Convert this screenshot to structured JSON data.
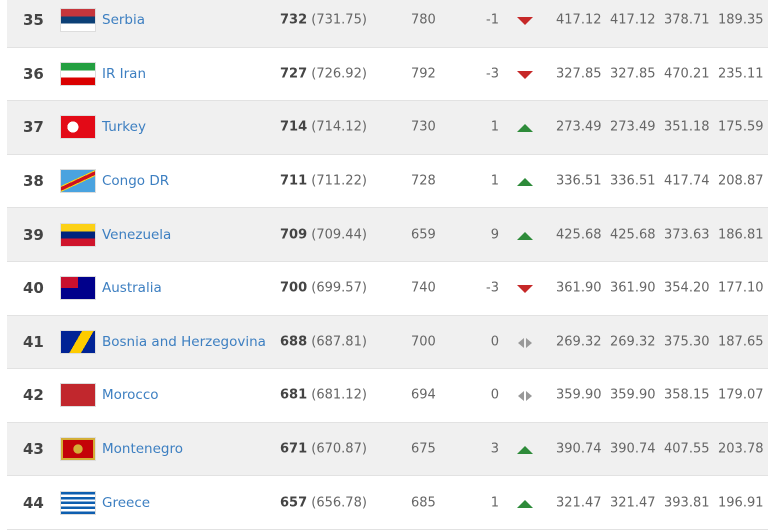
{
  "colors": {
    "up": "#2e8b3a",
    "down": "#c62828",
    "same": "#999999",
    "link": "#3d7fc1"
  },
  "rows": [
    {
      "rank": "35",
      "country": "Serbia",
      "flag": "serbia-flag",
      "points": "732",
      "points_exact": "(731.75)",
      "prev": "780",
      "change": "-1",
      "trend": "down",
      "c1": "417.12",
      "c2": "417.12",
      "c3": "378.71",
      "c4": "189.35"
    },
    {
      "rank": "36",
      "country": "IR Iran",
      "flag": "iran-flag",
      "points": "727",
      "points_exact": "(726.92)",
      "prev": "792",
      "change": "-3",
      "trend": "down",
      "c1": "327.85",
      "c2": "327.85",
      "c3": "470.21",
      "c4": "235.11"
    },
    {
      "rank": "37",
      "country": "Turkey",
      "flag": "turkey-flag",
      "points": "714",
      "points_exact": "(714.12)",
      "prev": "730",
      "change": "1",
      "trend": "up",
      "c1": "273.49",
      "c2": "273.49",
      "c3": "351.18",
      "c4": "175.59"
    },
    {
      "rank": "38",
      "country": "Congo DR",
      "flag": "congo-dr-flag",
      "points": "711",
      "points_exact": "(711.22)",
      "prev": "728",
      "change": "1",
      "trend": "up",
      "c1": "336.51",
      "c2": "336.51",
      "c3": "417.74",
      "c4": "208.87"
    },
    {
      "rank": "39",
      "country": "Venezuela",
      "flag": "venezuela-flag",
      "points": "709",
      "points_exact": "(709.44)",
      "prev": "659",
      "change": "9",
      "trend": "up",
      "c1": "425.68",
      "c2": "425.68",
      "c3": "373.63",
      "c4": "186.81"
    },
    {
      "rank": "40",
      "country": "Australia",
      "flag": "australia-flag",
      "points": "700",
      "points_exact": "(699.57)",
      "prev": "740",
      "change": "-3",
      "trend": "down",
      "c1": "361.90",
      "c2": "361.90",
      "c3": "354.20",
      "c4": "177.10"
    },
    {
      "rank": "41",
      "country": "Bosnia and Herzegovina",
      "flag": "bosnia-flag",
      "points": "688",
      "points_exact": "(687.81)",
      "prev": "700",
      "change": "0",
      "trend": "same",
      "c1": "269.32",
      "c2": "269.32",
      "c3": "375.30",
      "c4": "187.65"
    },
    {
      "rank": "42",
      "country": "Morocco",
      "flag": "morocco-flag",
      "points": "681",
      "points_exact": "(681.12)",
      "prev": "694",
      "change": "0",
      "trend": "same",
      "c1": "359.90",
      "c2": "359.90",
      "c3": "358.15",
      "c4": "179.07"
    },
    {
      "rank": "43",
      "country": "Montenegro",
      "flag": "montenegro-flag",
      "points": "671",
      "points_exact": "(670.87)",
      "prev": "675",
      "change": "3",
      "trend": "up",
      "c1": "390.74",
      "c2": "390.74",
      "c3": "407.55",
      "c4": "203.78"
    },
    {
      "rank": "44",
      "country": "Greece",
      "flag": "greece-flag",
      "points": "657",
      "points_exact": "(656.78)",
      "prev": "685",
      "change": "1",
      "trend": "up",
      "c1": "321.47",
      "c2": "321.47",
      "c3": "393.81",
      "c4": "196.91"
    }
  ]
}
